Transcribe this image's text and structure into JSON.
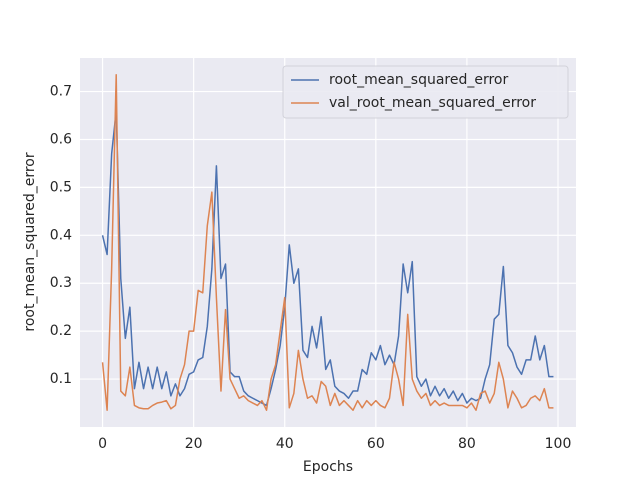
{
  "chart_data": {
    "type": "line",
    "xlabel": "Epochs",
    "ylabel": "root_mean_squared_error",
    "x": [
      0,
      1,
      2,
      3,
      4,
      5,
      6,
      7,
      8,
      9,
      10,
      11,
      12,
      13,
      14,
      15,
      16,
      17,
      18,
      19,
      20,
      21,
      22,
      23,
      24,
      25,
      26,
      27,
      28,
      29,
      30,
      31,
      32,
      33,
      34,
      35,
      36,
      37,
      38,
      39,
      40,
      41,
      42,
      43,
      44,
      45,
      46,
      47,
      48,
      49,
      50,
      51,
      52,
      53,
      54,
      55,
      56,
      57,
      58,
      59,
      60,
      61,
      62,
      63,
      64,
      65,
      66,
      67,
      68,
      69,
      70,
      71,
      72,
      73,
      74,
      75,
      76,
      77,
      78,
      79,
      80,
      81,
      82,
      83,
      84,
      85,
      86,
      87,
      88,
      89,
      90,
      91,
      92,
      93,
      94,
      95,
      96,
      97,
      98,
      99
    ],
    "series": [
      {
        "name": "root_mean_squared_error",
        "color": "#4c72b0",
        "values": [
          0.4,
          0.36,
          0.57,
          0.66,
          0.31,
          0.185,
          0.25,
          0.08,
          0.135,
          0.08,
          0.125,
          0.08,
          0.125,
          0.08,
          0.115,
          0.065,
          0.09,
          0.065,
          0.08,
          0.11,
          0.115,
          0.14,
          0.145,
          0.21,
          0.33,
          0.545,
          0.31,
          0.34,
          0.115,
          0.105,
          0.105,
          0.075,
          0.065,
          0.06,
          0.055,
          0.05,
          0.045,
          0.08,
          0.12,
          0.17,
          0.25,
          0.38,
          0.3,
          0.33,
          0.16,
          0.145,
          0.21,
          0.165,
          0.23,
          0.12,
          0.14,
          0.085,
          0.075,
          0.07,
          0.06,
          0.075,
          0.075,
          0.12,
          0.11,
          0.155,
          0.14,
          0.17,
          0.13,
          0.15,
          0.13,
          0.19,
          0.34,
          0.28,
          0.345,
          0.105,
          0.085,
          0.1,
          0.065,
          0.085,
          0.065,
          0.08,
          0.06,
          0.075,
          0.055,
          0.07,
          0.05,
          0.06,
          0.055,
          0.06,
          0.1,
          0.13,
          0.225,
          0.235,
          0.335,
          0.17,
          0.155,
          0.125,
          0.11,
          0.14,
          0.14,
          0.19,
          0.14,
          0.17,
          0.105,
          0.105
        ]
      },
      {
        "name": "val_root_mean_squared_error",
        "color": "#dd8452",
        "values": [
          0.135,
          0.035,
          0.33,
          0.735,
          0.075,
          0.065,
          0.125,
          0.045,
          0.04,
          0.038,
          0.038,
          0.045,
          0.05,
          0.052,
          0.055,
          0.038,
          0.045,
          0.1,
          0.13,
          0.2,
          0.2,
          0.285,
          0.28,
          0.42,
          0.49,
          0.27,
          0.075,
          0.245,
          0.1,
          0.08,
          0.06,
          0.065,
          0.055,
          0.05,
          0.045,
          0.055,
          0.035,
          0.1,
          0.13,
          0.2,
          0.27,
          0.04,
          0.07,
          0.16,
          0.1,
          0.06,
          0.065,
          0.05,
          0.095,
          0.085,
          0.045,
          0.07,
          0.045,
          0.055,
          0.045,
          0.035,
          0.055,
          0.04,
          0.055,
          0.045,
          0.055,
          0.045,
          0.04,
          0.06,
          0.135,
          0.1,
          0.045,
          0.235,
          0.1,
          0.075,
          0.06,
          0.07,
          0.045,
          0.055,
          0.045,
          0.05,
          0.045,
          0.045,
          0.045,
          0.045,
          0.04,
          0.05,
          0.035,
          0.07,
          0.075,
          0.05,
          0.07,
          0.135,
          0.1,
          0.04,
          0.075,
          0.06,
          0.04,
          0.045,
          0.06,
          0.065,
          0.055,
          0.08,
          0.04,
          0.04
        ]
      }
    ],
    "xlim": [
      -4.95,
      103.95
    ],
    "ylim": [
      0,
      0.77
    ],
    "xticks": [
      0,
      20,
      40,
      60,
      80,
      100
    ],
    "yticks": [
      0.1,
      0.2,
      0.3,
      0.4,
      0.5,
      0.6,
      0.7
    ],
    "grid": true,
    "legend": "upper right",
    "background": "#eaeaf2"
  }
}
